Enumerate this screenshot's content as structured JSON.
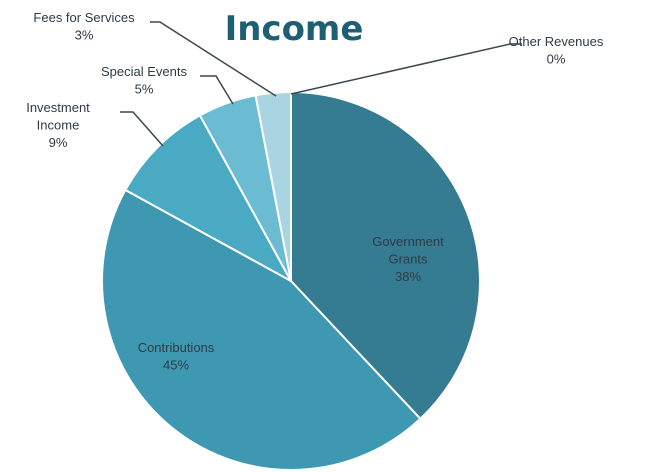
{
  "chart_data": {
    "type": "pie",
    "title": "Income",
    "title_color": "#1f5f73",
    "slices": [
      {
        "label": [
          "Government",
          "Grants"
        ],
        "value_label": "38%",
        "value": 38,
        "color": "#357c92"
      },
      {
        "label": [
          "Contributions"
        ],
        "value_label": "45%",
        "value": 45,
        "color": "#3f98b2"
      },
      {
        "label": [
          "Investment",
          "Income"
        ],
        "value_label": "9%",
        "value": 9,
        "color": "#4aaac4"
      },
      {
        "label": [
          "Special Events"
        ],
        "value_label": "5%",
        "value": 5,
        "color": "#6bbcd2"
      },
      {
        "label": [
          "Fees for Services"
        ],
        "value_label": "3%",
        "value": 3,
        "color": "#a9d5e2"
      },
      {
        "label": [
          "Other Revenues"
        ],
        "value_label": "0%",
        "value": 0,
        "color": "#cfe7ee"
      }
    ],
    "legend": "none"
  }
}
